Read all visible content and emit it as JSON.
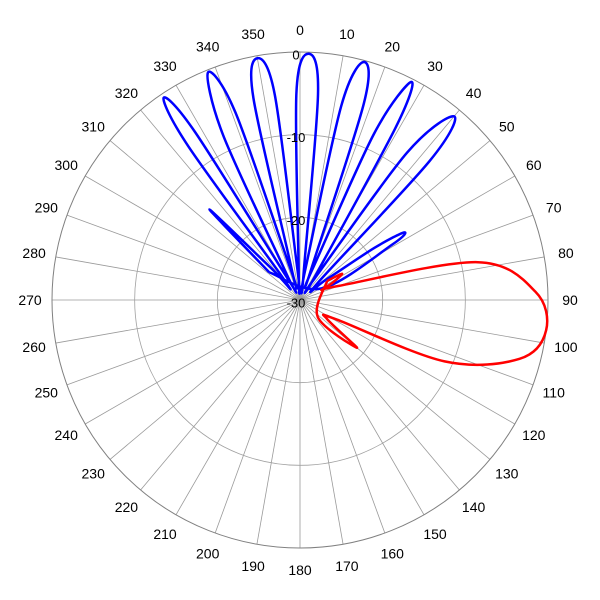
{
  "chart_data": {
    "type": "polar-line",
    "angle_unit": "degrees",
    "angle_zero": "top",
    "angle_direction": "clockwise",
    "angle_ticks": [
      0,
      10,
      20,
      30,
      40,
      50,
      60,
      70,
      80,
      90,
      100,
      110,
      120,
      130,
      140,
      150,
      160,
      170,
      180,
      190,
      200,
      210,
      220,
      230,
      240,
      250,
      260,
      270,
      280,
      290,
      300,
      310,
      320,
      330,
      340,
      350
    ],
    "radial_range": [
      -30,
      0
    ],
    "radial_ticks": [
      0,
      -10,
      -20,
      -30
    ],
    "grid": true,
    "series": [
      {
        "color": "#0000ff",
        "points": [
          [
            -48,
            -25
          ],
          [
            -45,
            -14.5
          ],
          [
            -42,
            -25
          ],
          [
            -38,
            -27
          ],
          [
            -36,
            -7
          ],
          [
            -34,
            -0.5
          ],
          [
            -32,
            -6
          ],
          [
            -30,
            -27
          ],
          [
            -27,
            -26
          ],
          [
            -25,
            -8
          ],
          [
            -22,
            -0.3
          ],
          [
            -19,
            -6
          ],
          [
            -17,
            -26
          ],
          [
            -15,
            -26
          ],
          [
            -13,
            -5
          ],
          [
            -10,
            -0.3
          ],
          [
            -7,
            -5
          ],
          [
            -5,
            -26
          ],
          [
            -3,
            -27
          ],
          [
            -1,
            -5
          ],
          [
            2,
            -0.2
          ],
          [
            5,
            -5
          ],
          [
            8,
            -27
          ],
          [
            10,
            -26
          ],
          [
            12,
            -6
          ],
          [
            15,
            -0.2
          ],
          [
            18,
            -5
          ],
          [
            20,
            -26
          ],
          [
            22,
            -26
          ],
          [
            24,
            -8
          ],
          [
            27,
            -0.4
          ],
          [
            29,
            -6
          ],
          [
            32,
            -26
          ],
          [
            34,
            -27
          ],
          [
            36,
            -8
          ],
          [
            40,
            -1
          ],
          [
            43,
            -7
          ],
          [
            46,
            -27
          ],
          [
            52,
            -26
          ],
          [
            55,
            -19
          ],
          [
            57,
            -15
          ],
          [
            59,
            -17
          ],
          [
            62,
            -27
          ]
        ]
      },
      {
        "color": "#ff0000",
        "points": [
          [
            55,
            -26
          ],
          [
            58,
            -24
          ],
          [
            62,
            -25.5
          ],
          [
            66,
            -27
          ],
          [
            70,
            -25
          ],
          [
            78,
            -8
          ],
          [
            88,
            -1.5
          ],
          [
            97,
            0
          ],
          [
            105,
            -2.5
          ],
          [
            113,
            -11
          ],
          [
            118,
            -25
          ],
          [
            125,
            -26
          ],
          [
            130,
            -21
          ],
          [
            134,
            -27
          ]
        ]
      }
    ]
  }
}
